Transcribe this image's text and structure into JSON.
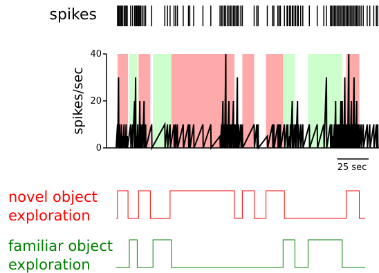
{
  "chart_data": {
    "type": "line",
    "spikes_label": "spikes",
    "ylabel": "spikes/sec",
    "yticks": [
      "0",
      "20",
      "40"
    ],
    "ylim": [
      0,
      40
    ],
    "xlim": [
      0,
      100
    ],
    "scalebar_label": "25 sec",
    "scalebar_length": 12,
    "colors": {
      "novel": "#ff0000",
      "familiar": "#008000",
      "novel_shade": "#ffaaaa",
      "familiar_shade": "#ccffcc",
      "rate": "#000000"
    },
    "novel_label": [
      "novel object",
      "exploration"
    ],
    "familiar_label": [
      "familiar object",
      "exploration"
    ],
    "novel_intervals": [
      [
        0.5,
        4.5
      ],
      [
        8.5,
        13.0
      ],
      [
        20.5,
        45.0
      ],
      [
        48.0,
        52.5
      ],
      [
        57.0,
        64.0
      ],
      [
        87.5,
        92.5
      ]
    ],
    "familiar_intervals": [
      [
        5.0,
        8.0
      ],
      [
        14.0,
        21.0
      ],
      [
        63.5,
        68.0
      ],
      [
        73.0,
        86.0
      ]
    ],
    "spike_times": [
      0.5,
      0.9,
      1.3,
      1.6,
      2.0,
      2.4,
      3.0,
      3.4,
      3.8,
      4.2,
      5.5,
      6.2,
      7.0,
      7.4,
      7.8,
      8.2,
      8.6,
      9.0,
      9.4,
      10.0,
      10.6,
      11.2,
      13.5,
      18.5,
      19.5,
      20.5,
      22.0,
      22.6,
      23.3,
      25.5,
      27.5,
      28.0,
      29.5,
      33.0,
      36.0,
      39.5,
      40.1,
      40.6,
      41.2,
      41.7,
      42.3,
      42.9,
      43.5,
      44.0,
      44.6,
      45.1,
      45.6,
      46.1,
      46.6,
      47.4,
      48.0,
      52.5,
      53.5,
      54.0,
      57.5,
      59.5,
      60.0,
      61.5,
      62.0,
      62.5,
      64.0,
      65.0,
      65.3,
      66.0,
      66.3,
      67.0,
      67.3,
      68.0,
      68.3,
      69.0,
      69.3,
      70.2,
      71.0,
      73.5,
      76.5,
      79.0,
      80.0,
      81.5,
      82.0,
      82.5,
      83.0,
      83.5,
      84.0,
      84.5,
      85.0,
      85.5,
      86.0,
      86.5,
      87.0,
      87.5,
      88.0,
      88.5,
      89.0,
      89.5,
      90.0,
      90.5,
      91.0,
      91.5,
      92.0,
      92.5,
      93.2,
      94.0,
      95.5,
      96.5,
      98.0,
      99.0,
      99.5
    ],
    "rate_x": [
      0.0,
      0.5,
      0.6,
      0.9,
      1.0,
      1.3,
      1.4,
      1.6,
      1.7,
      2.0,
      2.1,
      2.4,
      2.5,
      3.0,
      3.1,
      3.4,
      3.5,
      3.8,
      3.9,
      4.2,
      4.3,
      5.5,
      5.6,
      6.2,
      6.3,
      7.0,
      7.1,
      7.4,
      7.5,
      7.8,
      7.9,
      8.2,
      8.3,
      8.6,
      8.7,
      9.0,
      9.1,
      9.4,
      9.5,
      10.0,
      10.1,
      10.6,
      10.7,
      11.2,
      11.3,
      13.5,
      13.6,
      18.5,
      18.6,
      19.5,
      19.6,
      20.5,
      20.6,
      22.0,
      22.1,
      22.6,
      22.7,
      23.3,
      23.4,
      25.5,
      25.6,
      27.5,
      27.6,
      28.0,
      28.1,
      29.5,
      29.6,
      33.0,
      33.1,
      36.0,
      36.1,
      39.5,
      39.6,
      40.1,
      40.2,
      40.6,
      40.7,
      41.2,
      41.3,
      41.7,
      41.8,
      42.3,
      42.4,
      42.9,
      43.0,
      43.5,
      43.6,
      44.0,
      44.1,
      44.6,
      44.7,
      45.1,
      45.2,
      45.6,
      45.7,
      46.1,
      46.2,
      46.6,
      46.7,
      47.4,
      47.5,
      48.0,
      48.1,
      52.5,
      52.6,
      53.5,
      53.6,
      54.0,
      54.1,
      57.5,
      57.6,
      59.5,
      59.6,
      60.0,
      60.1,
      61.5,
      61.6,
      62.0,
      62.1,
      62.5,
      62.6,
      64.0,
      64.1,
      65.0,
      65.1,
      65.3,
      65.4,
      66.0,
      66.1,
      66.3,
      66.4,
      67.0,
      67.1,
      67.3,
      67.4,
      68.0,
      68.1,
      68.3,
      68.4,
      69.0,
      69.1,
      69.3,
      69.4,
      70.2,
      70.3,
      71.0,
      71.1,
      73.5,
      73.6,
      76.5,
      76.6,
      79.0,
      79.1,
      80.0,
      80.1,
      81.5,
      81.6,
      82.0,
      82.1,
      82.5,
      82.6,
      83.0,
      83.1,
      83.5,
      83.6,
      84.0,
      84.1,
      84.5,
      84.6,
      85.0,
      85.1,
      85.5,
      85.6,
      86.0,
      86.1,
      86.5,
      86.6,
      87.0,
      87.1,
      87.5,
      87.6,
      88.0,
      88.1,
      88.5,
      88.6,
      89.0,
      89.1,
      89.5,
      89.6,
      90.0,
      90.1,
      90.5,
      90.6,
      91.0,
      91.1,
      91.5,
      91.6,
      92.0,
      92.1,
      92.5,
      92.6,
      93.2,
      93.3,
      94.0,
      94.1,
      95.5,
      95.6,
      96.5,
      96.6,
      98.0,
      98.1,
      99.0,
      99.1,
      99.5,
      99.6,
      100.0
    ],
    "rate_y": [
      0,
      10,
      0,
      30,
      0,
      10,
      0,
      5,
      0,
      10,
      0,
      5,
      0,
      10,
      0,
      5,
      0,
      10,
      0,
      5,
      0,
      10,
      0,
      10,
      0,
      20,
      0,
      30,
      0,
      5,
      0,
      10,
      0,
      5,
      0,
      20,
      0,
      10,
      0,
      10,
      0,
      20,
      0,
      10,
      0,
      10,
      0,
      10,
      0,
      10,
      0,
      10,
      0,
      10,
      0,
      10,
      0,
      10,
      0,
      10,
      0,
      10,
      0,
      10,
      0,
      10,
      0,
      10,
      0,
      10,
      0,
      5,
      0,
      10,
      0,
      20,
      0,
      10,
      0,
      40,
      0,
      10,
      0,
      20,
      0,
      10,
      0,
      10,
      0,
      20,
      0,
      10,
      0,
      10,
      0,
      30,
      0,
      10,
      0,
      10,
      0,
      10,
      0,
      10,
      0,
      10,
      0,
      10,
      0,
      5,
      0,
      10,
      0,
      10,
      0,
      10,
      0,
      10,
      0,
      10,
      0,
      10,
      0,
      10,
      0,
      10,
      0,
      5,
      0,
      10,
      0,
      20,
      0,
      10,
      0,
      10,
      0,
      10,
      0,
      20,
      0,
      10,
      0,
      10,
      0,
      10,
      0,
      10,
      0,
      10,
      0,
      10,
      0,
      30,
      0,
      10,
      0,
      10,
      0,
      5,
      0,
      10,
      0,
      20,
      0,
      10,
      0,
      10,
      0,
      10,
      0,
      20,
      0,
      20,
      0,
      10,
      0,
      30,
      0,
      10,
      0,
      10,
      0,
      40,
      0,
      10,
      0,
      20,
      0,
      10,
      0,
      30,
      0,
      10,
      0,
      20,
      0,
      10,
      0,
      10,
      0,
      10,
      0,
      10,
      0,
      10,
      0,
      10,
      0,
      10,
      0,
      10,
      0,
      10,
      0
    ]
  }
}
